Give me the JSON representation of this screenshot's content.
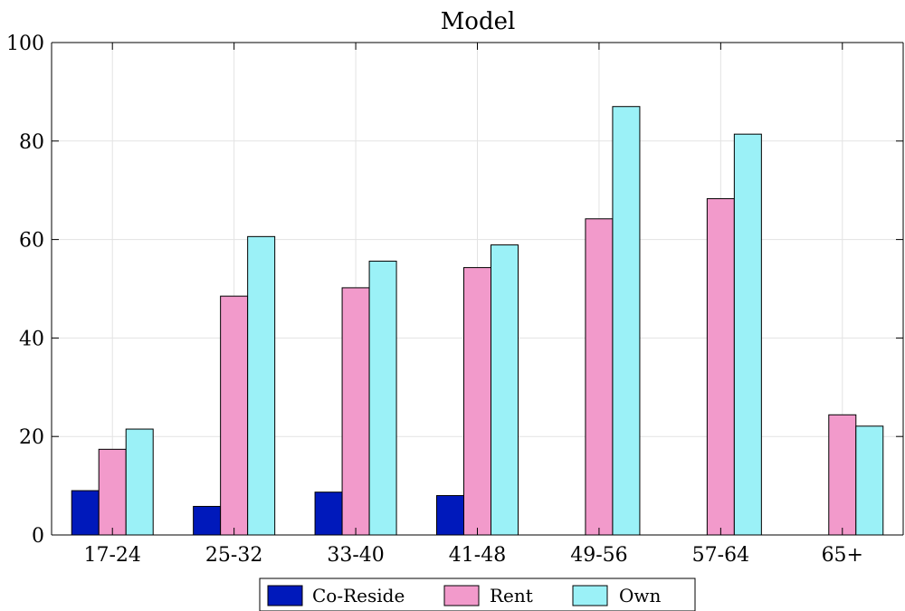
{
  "chart_data": {
    "type": "bar",
    "title": "Model",
    "xlabel": "",
    "ylabel": "",
    "categories": [
      "17-24",
      "25-32",
      "33-40",
      "41-48",
      "49-56",
      "57-64",
      "65+"
    ],
    "series": [
      {
        "name": "Co-Reside",
        "color": "#0019BB",
        "values": [
          9.0,
          5.8,
          8.7,
          8.0,
          0,
          0,
          0
        ]
      },
      {
        "name": "Rent",
        "color": "#F29ACB",
        "values": [
          17.4,
          48.5,
          50.2,
          54.3,
          64.2,
          68.3,
          24.4
        ]
      },
      {
        "name": "Own",
        "color": "#9BF1F7",
        "values": [
          21.5,
          60.6,
          55.6,
          58.9,
          87.0,
          81.4,
          22.1
        ]
      }
    ],
    "ylim": [
      0,
      100
    ],
    "yticks": [
      0,
      20,
      40,
      60,
      80,
      100
    ],
    "grid": true,
    "legend": "bottom-center"
  }
}
